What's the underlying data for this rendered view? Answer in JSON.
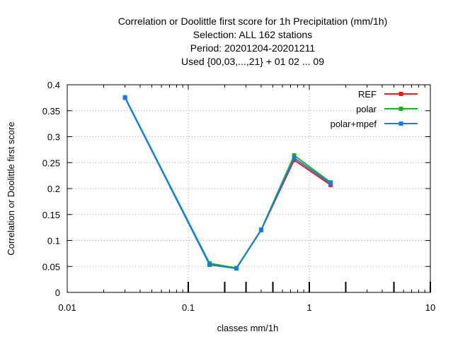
{
  "chart_data": {
    "type": "line",
    "title_lines": [
      "Correlation or Doolittle first score  for 1h Precipitation (mm/1h)",
      "Selection: ALL    162 stations",
      "Period: 20201204-20201211",
      "Used {00,03,...,21} + 01 02 ... 09"
    ],
    "xlabel": "classes mm/1h",
    "ylabel": "Correlation or Doolittle first score",
    "x_scale": "log",
    "xlim": [
      0.01,
      10
    ],
    "ylim": [
      0,
      0.4
    ],
    "x_ticks": [
      0.01,
      0.1,
      1,
      10
    ],
    "x_tick_labels": [
      "0.01",
      "0.1",
      "1",
      "10"
    ],
    "x_class_marks": [
      0.1,
      0.2,
      0.3,
      0.5,
      1,
      2,
      5,
      10
    ],
    "y_ticks": [
      0,
      0.05,
      0.1,
      0.15,
      0.2,
      0.25,
      0.3,
      0.35,
      0.4
    ],
    "y_tick_labels": [
      "0",
      "0.05",
      "0.1",
      "0.15",
      "0.2",
      "0.25",
      "0.3",
      "0.35",
      "0.4"
    ],
    "grid": true,
    "legend_position": "top-right",
    "series": [
      {
        "name": "REF",
        "color": "#e41a1c",
        "x": [
          0.03,
          0.15,
          0.25,
          0.4,
          0.75,
          1.5
        ],
        "y": [
          0.375,
          0.055,
          0.047,
          0.12,
          0.255,
          0.207
        ]
      },
      {
        "name": "polar",
        "color": "#1ab41a",
        "x": [
          0.03,
          0.15,
          0.25,
          0.4,
          0.75,
          1.5
        ],
        "y": [
          0.376,
          0.056,
          0.047,
          0.121,
          0.264,
          0.212
        ]
      },
      {
        "name": "polar+mpef",
        "color": "#1a7ae4",
        "x": [
          0.03,
          0.15,
          0.25,
          0.4,
          0.75,
          1.5
        ],
        "y": [
          0.375,
          0.053,
          0.046,
          0.12,
          0.259,
          0.21
        ]
      }
    ]
  }
}
